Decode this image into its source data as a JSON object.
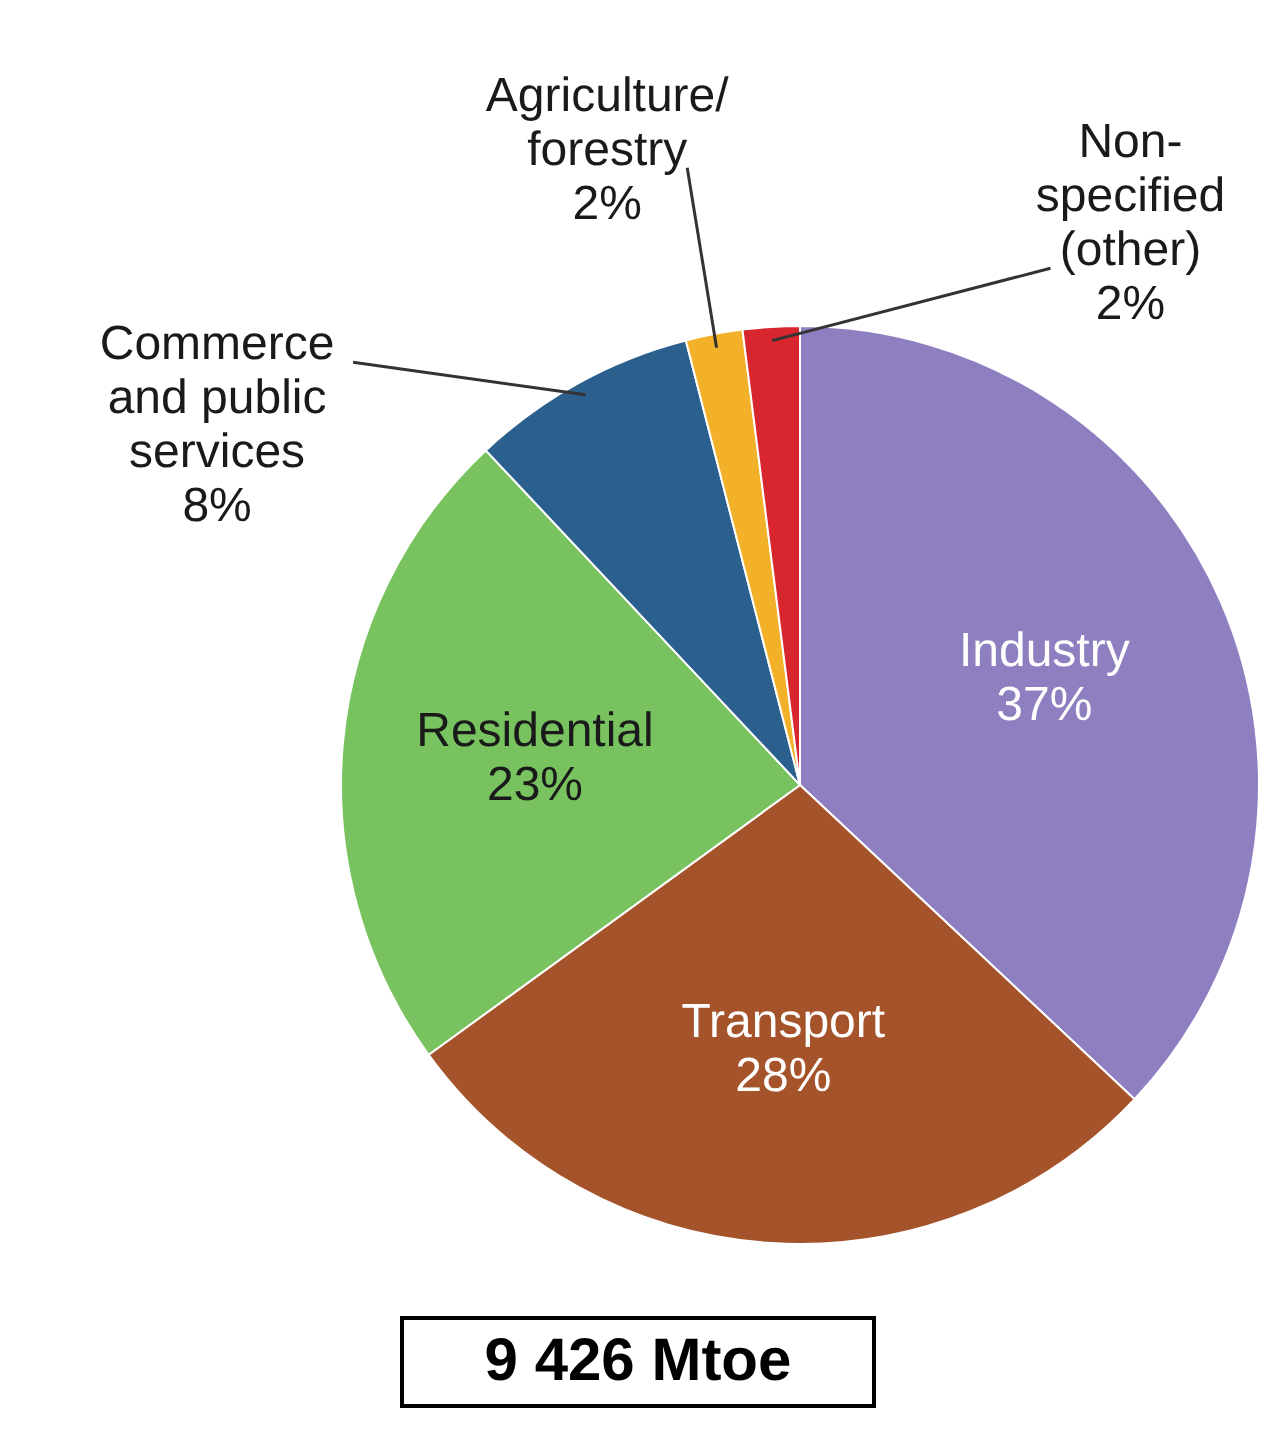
{
  "chart_data": {
    "type": "pie",
    "categories": [
      "Industry",
      "Transport",
      "Residential",
      "Commerce and public services",
      "Agriculture/forestry",
      "Non-specified (other)"
    ],
    "values": [
      37,
      28,
      23,
      8,
      2,
      2
    ],
    "value_labels": [
      "37%",
      "28%",
      "23%",
      "8%",
      "2%",
      "2%"
    ],
    "colors": [
      "#8e7fc0",
      "#a5532b",
      "#78c35f",
      "#2b5f8e",
      "#f3b12a",
      "#d8262f"
    ],
    "legend": false,
    "annotations": [
      "9 426 Mtoe"
    ]
  }
}
